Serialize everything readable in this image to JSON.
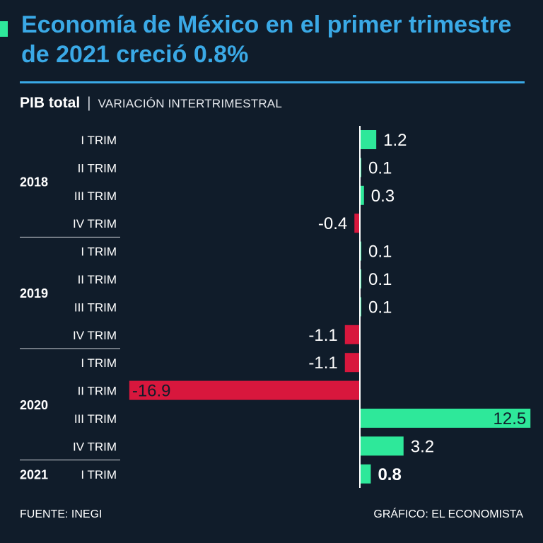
{
  "title": "Economía de México en el primer trimestre de 2021 creció 0.8%",
  "subtitle": {
    "metric": "PIB total",
    "separator": "|",
    "variation": "VARIACIÓN INTERTRIMESTRAL"
  },
  "footer": {
    "source": "FUENTE: INEGI",
    "credit": "GRÁFICO: EL ECONOMISTA"
  },
  "colors": {
    "background": "#101c2a",
    "title": "#3aa9e6",
    "positive": "#2ee89a",
    "negative": "#d8173d",
    "accent": "#2ee89a"
  },
  "chart_data": {
    "type": "bar",
    "orientation": "horizontal",
    "groups": [
      {
        "label": "2018",
        "quarters": [
          {
            "label": "I TRIM",
            "value": 1.2
          },
          {
            "label": "II TRIM",
            "value": 0.1
          },
          {
            "label": "III TRIM",
            "value": 0.3
          },
          {
            "label": "IV TRIM",
            "value": -0.4
          }
        ]
      },
      {
        "label": "2019",
        "quarters": [
          {
            "label": "I TRIM",
            "value": 0.1
          },
          {
            "label": "II TRIM",
            "value": 0.1
          },
          {
            "label": "III TRIM",
            "value": 0.1
          },
          {
            "label": "IV TRIM",
            "value": -1.1
          }
        ]
      },
      {
        "label": "2020",
        "quarters": [
          {
            "label": "I TRIM",
            "value": -1.1
          },
          {
            "label": "II TRIM",
            "value": -16.9
          },
          {
            "label": "III TRIM",
            "value": 12.5
          },
          {
            "label": "IV TRIM",
            "value": 3.2
          }
        ]
      },
      {
        "label": "2021",
        "quarters": [
          {
            "label": "I TRIM",
            "value": 0.8,
            "highlight": true
          }
        ]
      }
    ],
    "value_labels": [
      "1.2",
      "0.1",
      "0.3",
      "-0.4",
      "0.1",
      "0.1",
      "0.1",
      "-1.1",
      "-1.1",
      "-16.9",
      "12.5",
      "3.2",
      "0.8"
    ],
    "xlim": [
      -16.9,
      12.5
    ],
    "grid": false,
    "legend": "none"
  }
}
